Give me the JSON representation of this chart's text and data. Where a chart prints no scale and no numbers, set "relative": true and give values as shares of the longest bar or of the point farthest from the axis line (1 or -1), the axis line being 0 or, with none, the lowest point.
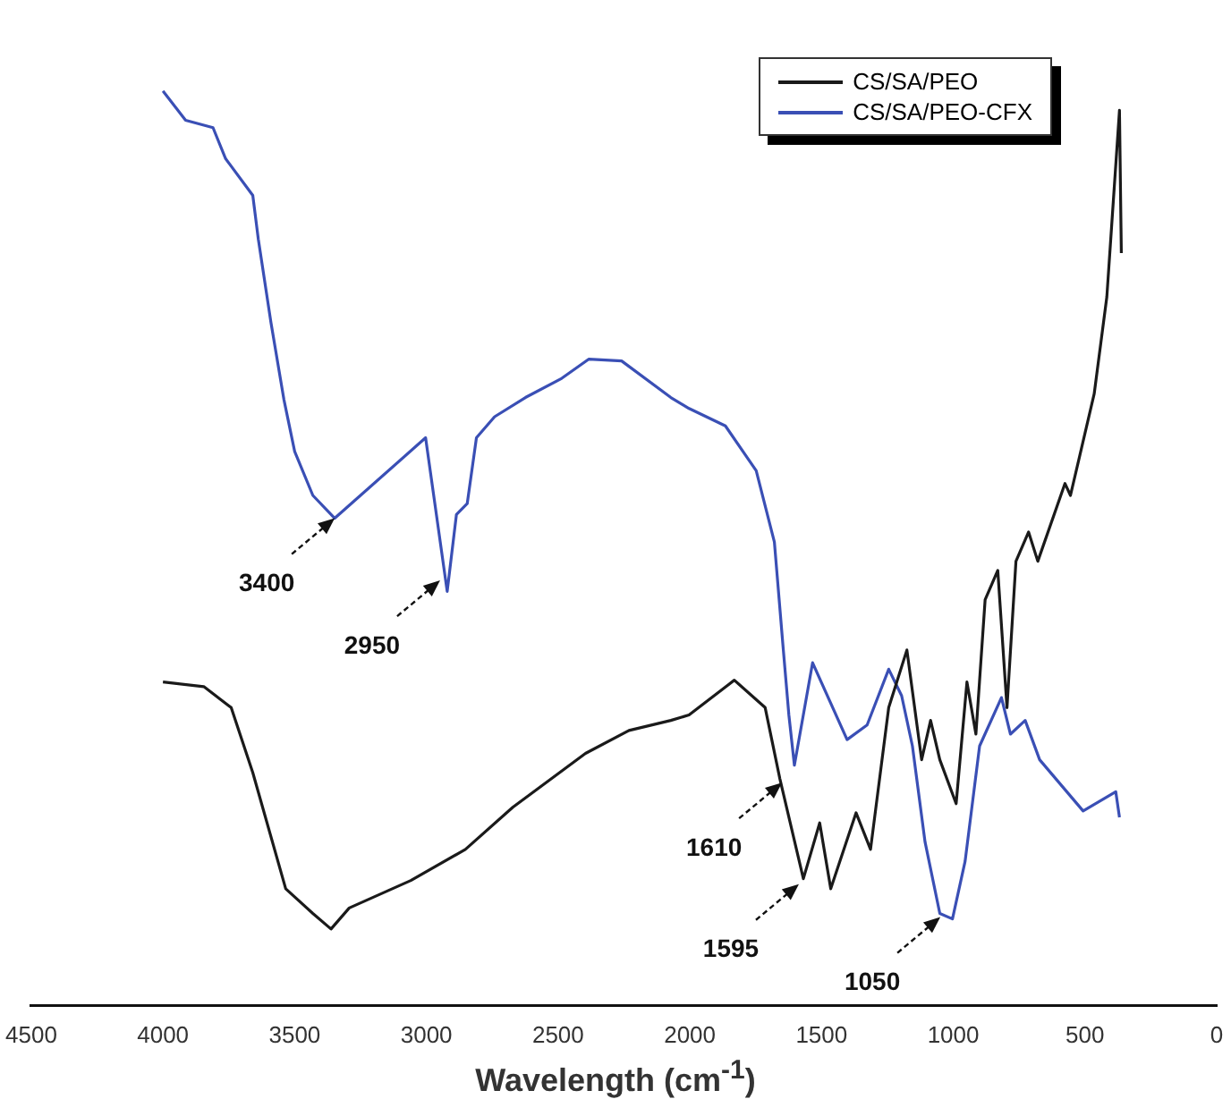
{
  "chart_data": {
    "type": "line",
    "xlabel": "Wavelength (cm$^{-1}$)",
    "relative": true,
    "xlim": [
      4500,
      0
    ],
    "xticks": [
      4500,
      4000,
      3500,
      3000,
      2500,
      2000,
      1500,
      1000,
      500,
      0
    ],
    "grid": false,
    "legend": "top right",
    "marker": "none",
    "line_style": "solid",
    "series": [
      {
        "name": "CS/SA/PEO",
        "color": "#1a1a1a",
        "x": [
          4000,
          3845,
          3741,
          3659,
          3534,
          3431,
          3362,
          3293,
          3059,
          2852,
          2672,
          2396,
          2231,
          2072,
          2003,
          1831,
          1714,
          1658,
          1569,
          1507,
          1465,
          1369,
          1314,
          1245,
          1176,
          1120,
          1086,
          1051,
          989,
          948,
          914,
          879,
          831,
          796,
          762,
          714,
          679,
          576,
          555,
          465,
          417,
          369,
          362
        ],
        "values": [
          0.354,
          0.349,
          0.326,
          0.255,
          0.128,
          0.101,
          0.084,
          0.107,
          0.137,
          0.171,
          0.217,
          0.276,
          0.301,
          0.312,
          0.318,
          0.356,
          0.326,
          0.248,
          0.139,
          0.2,
          0.128,
          0.211,
          0.171,
          0.326,
          0.389,
          0.269,
          0.312,
          0.269,
          0.221,
          0.354,
          0.297,
          0.444,
          0.476,
          0.326,
          0.486,
          0.518,
          0.486,
          0.571,
          0.558,
          0.669,
          0.775,
          0.979,
          0.823
        ]
      },
      {
        "name": "CS/SA/PEO-CFX",
        "color": "#3a4fb5",
        "x": [
          4000,
          3914,
          3810,
          3762,
          3659,
          3638,
          3590,
          3541,
          3500,
          3431,
          3348,
          3003,
          2921,
          2886,
          2845,
          2810,
          2741,
          2624,
          2486,
          2383,
          2259,
          2072,
          2003,
          1865,
          1748,
          1679,
          1645,
          1624,
          1603,
          1534,
          1403,
          1327,
          1245,
          1196,
          1155,
          1107,
          1051,
          1003,
          955,
          900,
          817,
          783,
          727,
          672,
          507,
          383,
          369
        ],
        "values": [
          1.0,
          0.968,
          0.96,
          0.926,
          0.886,
          0.838,
          0.747,
          0.663,
          0.606,
          0.558,
          0.533,
          0.621,
          0.453,
          0.537,
          0.549,
          0.621,
          0.644,
          0.665,
          0.686,
          0.707,
          0.705,
          0.665,
          0.653,
          0.634,
          0.585,
          0.507,
          0.389,
          0.318,
          0.263,
          0.375,
          0.291,
          0.307,
          0.368,
          0.339,
          0.284,
          0.179,
          0.101,
          0.095,
          0.158,
          0.284,
          0.337,
          0.297,
          0.312,
          0.269,
          0.213,
          0.234,
          0.206
        ]
      }
    ],
    "annotations": [
      {
        "text": "3400",
        "x": 3348,
        "y": 0.533
      },
      {
        "text": "2950",
        "x": 2948,
        "y": 0.465
      },
      {
        "text": "1610",
        "x": 1650,
        "y": 0.244
      },
      {
        "text": "1595",
        "x": 1586,
        "y": 0.133
      },
      {
        "text": "1050",
        "x": 1049,
        "y": 0.097
      }
    ]
  }
}
